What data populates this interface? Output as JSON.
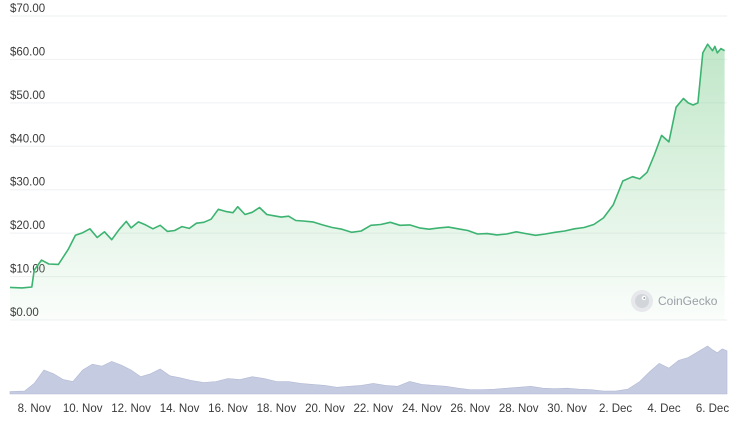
{
  "chart_data": {
    "type": "area",
    "title": "",
    "xlabel": "",
    "ylabel": "",
    "ylim": [
      0,
      70
    ],
    "y_ticks": [
      "$70.00",
      "$60.00",
      "$50.00",
      "$40.00",
      "$30.00",
      "$20.00",
      "$10.00",
      "$0.00"
    ],
    "y_tick_values": [
      70,
      60,
      50,
      40,
      30,
      20,
      10,
      0
    ],
    "x_ticks": [
      "8. Nov",
      "10. Nov",
      "12. Nov",
      "14. Nov",
      "16. Nov",
      "18. Nov",
      "20. Nov",
      "22. Nov",
      "24. Nov",
      "26. Nov",
      "28. Nov",
      "30. Nov",
      "2. Dec",
      "4. Dec",
      "6. Dec"
    ],
    "x_tick_days": [
      8,
      10,
      12,
      14,
      16,
      18,
      20,
      22,
      24,
      26,
      28,
      30,
      32,
      34,
      36
    ],
    "xlim_days": [
      7.0,
      36.6
    ],
    "grid": true,
    "line_color": "#3cb371",
    "fill_color": "#8dd39b",
    "volume_color": "#c5cbe0",
    "series": [
      {
        "x": [
          7.0,
          7.5,
          7.9,
          8.0,
          8.3,
          8.6,
          9.0,
          9.4,
          9.7,
          10.0,
          10.3,
          10.6,
          10.9,
          11.2,
          11.5,
          11.8,
          12.0,
          12.3,
          12.6,
          12.9,
          13.2,
          13.5,
          13.8,
          14.1,
          14.4,
          14.7,
          15.0,
          15.3,
          15.6,
          15.9,
          16.2,
          16.4,
          16.7,
          17.0,
          17.3,
          17.6,
          17.9,
          18.2,
          18.5,
          18.8,
          19.1,
          19.5,
          19.9,
          20.3,
          20.7,
          21.1,
          21.5,
          21.9,
          22.3,
          22.7,
          23.1,
          23.5,
          23.9,
          24.3,
          24.7,
          25.1,
          25.5,
          25.9,
          26.3,
          26.7,
          27.1,
          27.5,
          27.9,
          28.3,
          28.7,
          29.1,
          29.5,
          29.9,
          30.3,
          30.7,
          31.1,
          31.5,
          31.9,
          32.3,
          32.7,
          33.0,
          33.3,
          33.6,
          33.9,
          34.2,
          34.5,
          34.8,
          35.0,
          35.2,
          35.4,
          35.6,
          35.8,
          36.0,
          36.1,
          36.2,
          36.35,
          36.5
        ],
        "y": [
          7.5,
          7.4,
          7.6,
          11.5,
          13.8,
          12.9,
          12.8,
          16.2,
          19.5,
          20.1,
          21.0,
          19.0,
          20.3,
          18.5,
          20.8,
          22.7,
          21.2,
          22.6,
          21.9,
          21.0,
          21.8,
          20.4,
          20.6,
          21.5,
          21.1,
          22.3,
          22.5,
          23.2,
          25.5,
          25.0,
          24.7,
          26.1,
          24.3,
          24.8,
          25.9,
          24.3,
          24.0,
          23.7,
          23.9,
          22.9,
          22.8,
          22.6,
          21.9,
          21.3,
          20.9,
          20.2,
          20.5,
          21.8,
          22.0,
          22.5,
          21.8,
          21.9,
          21.2,
          20.9,
          21.2,
          21.4,
          21.0,
          20.6,
          19.8,
          19.9,
          19.6,
          19.8,
          20.3,
          19.9,
          19.5,
          19.8,
          20.2,
          20.5,
          21.0,
          21.3,
          22.0,
          23.5,
          26.5,
          32.0,
          33.0,
          32.5,
          34.0,
          38.0,
          42.5,
          41.0,
          49.0,
          51.0,
          50.0,
          49.5,
          50.0,
          61.5,
          63.5,
          62.0,
          63.0,
          61.5,
          62.5,
          62.0
        ]
      }
    ],
    "volume": {
      "x": [
        7.0,
        7.6,
        8.0,
        8.4,
        8.8,
        9.2,
        9.6,
        10.0,
        10.4,
        10.8,
        11.2,
        11.6,
        12.0,
        12.4,
        12.8,
        13.2,
        13.6,
        14.0,
        14.5,
        15.0,
        15.5,
        16.0,
        16.5,
        17.0,
        17.5,
        18.0,
        18.5,
        19.0,
        19.5,
        20.0,
        20.5,
        21.0,
        21.5,
        22.0,
        22.5,
        23.0,
        23.5,
        24.0,
        24.5,
        25.0,
        25.5,
        26.0,
        26.5,
        27.0,
        27.5,
        28.0,
        28.5,
        29.0,
        29.5,
        30.0,
        30.5,
        31.0,
        31.5,
        32.0,
        32.5,
        33.0,
        33.4,
        33.8,
        34.2,
        34.6,
        35.0,
        35.4,
        35.8,
        36.0,
        36.2,
        36.4,
        36.6
      ],
      "values": [
        0.5,
        0.6,
        2.2,
        5.0,
        4.2,
        3.0,
        2.6,
        5.0,
        6.2,
        5.8,
        6.8,
        6.0,
        5.0,
        3.6,
        4.2,
        5.2,
        3.8,
        3.4,
        2.8,
        2.4,
        2.6,
        3.2,
        3.0,
        3.6,
        3.2,
        2.6,
        2.6,
        2.2,
        2.0,
        1.8,
        1.4,
        1.6,
        1.8,
        2.2,
        1.8,
        1.6,
        2.6,
        2.0,
        1.8,
        1.6,
        1.2,
        0.9,
        0.9,
        1.0,
        1.2,
        1.4,
        1.6,
        1.2,
        1.1,
        1.2,
        1.0,
        0.9,
        0.6,
        0.6,
        1.0,
        2.6,
        4.6,
        6.4,
        5.4,
        7.0,
        7.6,
        8.8,
        10.0,
        9.2,
        8.6,
        9.4,
        9.0
      ]
    }
  },
  "watermark": {
    "text": "CoinGecko",
    "icon": "gecko-logo-icon"
  }
}
